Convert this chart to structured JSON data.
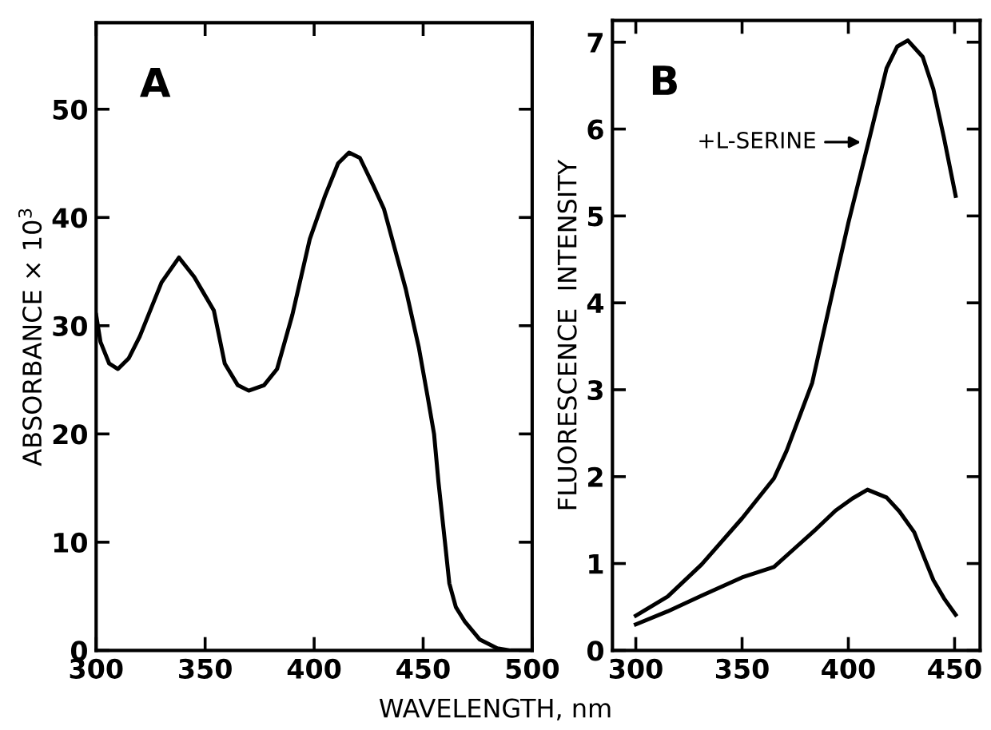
{
  "chart_data": [
    {
      "type": "line",
      "xlabel": "WAVELENGTH, nm",
      "ylabel": "ABSORBANCE × 10$^{3}$",
      "annotations": [
        "A"
      ],
      "xlim": [
        300,
        500
      ],
      "ylim": [
        0,
        58
      ],
      "xticks": [
        300,
        350,
        400,
        450,
        500
      ],
      "yticks": [
        0,
        10,
        20,
        30,
        40,
        50
      ],
      "grid": false,
      "legend": false,
      "marker": "none",
      "line_style": "solid",
      "series": [
        {
          "color": "#000000",
          "x": [
            300,
            302,
            306,
            310,
            315,
            320,
            330,
            338,
            345,
            354,
            359,
            365,
            370,
            377,
            383,
            390,
            398,
            405,
            411,
            416,
            421,
            427,
            432,
            442,
            448,
            452,
            455,
            457,
            460,
            462,
            465,
            469,
            476,
            484,
            490,
            500
          ],
          "values": [
            31,
            28.5,
            26.5,
            26,
            27,
            29,
            34,
            36.3,
            34.5,
            31.4,
            26.5,
            24.5,
            24,
            24.5,
            26,
            31,
            38,
            42,
            45,
            46,
            45.5,
            43,
            40.8,
            33.4,
            28,
            23.5,
            20,
            15.6,
            10,
            6.2,
            4,
            2.7,
            1,
            0.2,
            0,
            0
          ]
        }
      ]
    },
    {
      "type": "line",
      "ylabel": "FLUORESCENCE  INTENSITY",
      "annotations": [
        "B",
        {
          "text": "+L-SERINE",
          "x": 408,
          "y": 5.85
        }
      ],
      "xlim": [
        289,
        462
      ],
      "ylim": [
        0,
        7.25
      ],
      "xticks": [
        300,
        350,
        400,
        450
      ],
      "yticks": [
        0,
        1,
        2,
        3,
        4,
        5,
        6,
        7
      ],
      "grid": false,
      "legend": false,
      "marker": "none",
      "line_style": "solid",
      "series": [
        {
          "color": "#000000",
          "x": [
            300,
            315,
            331,
            350,
            365,
            371,
            383,
            392,
            400,
            410,
            418,
            423,
            428,
            435,
            440,
            445,
            450.5
          ],
          "values": [
            0.4,
            0.62,
            0.99,
            1.52,
            1.98,
            2.3,
            3.08,
            4.06,
            4.92,
            5.9,
            6.7,
            6.95,
            7.02,
            6.83,
            6.46,
            5.9,
            5.23
          ]
        },
        {
          "color": "#000000",
          "x": [
            300,
            315,
            331,
            350,
            365,
            375,
            385,
            394,
            402,
            409,
            418,
            424,
            431,
            436,
            440,
            445,
            450.5
          ],
          "values": [
            0.3,
            0.45,
            0.63,
            0.84,
            0.96,
            1.18,
            1.4,
            1.61,
            1.75,
            1.85,
            1.76,
            1.6,
            1.36,
            1.05,
            0.81,
            0.6,
            0.41
          ]
        }
      ]
    }
  ]
}
